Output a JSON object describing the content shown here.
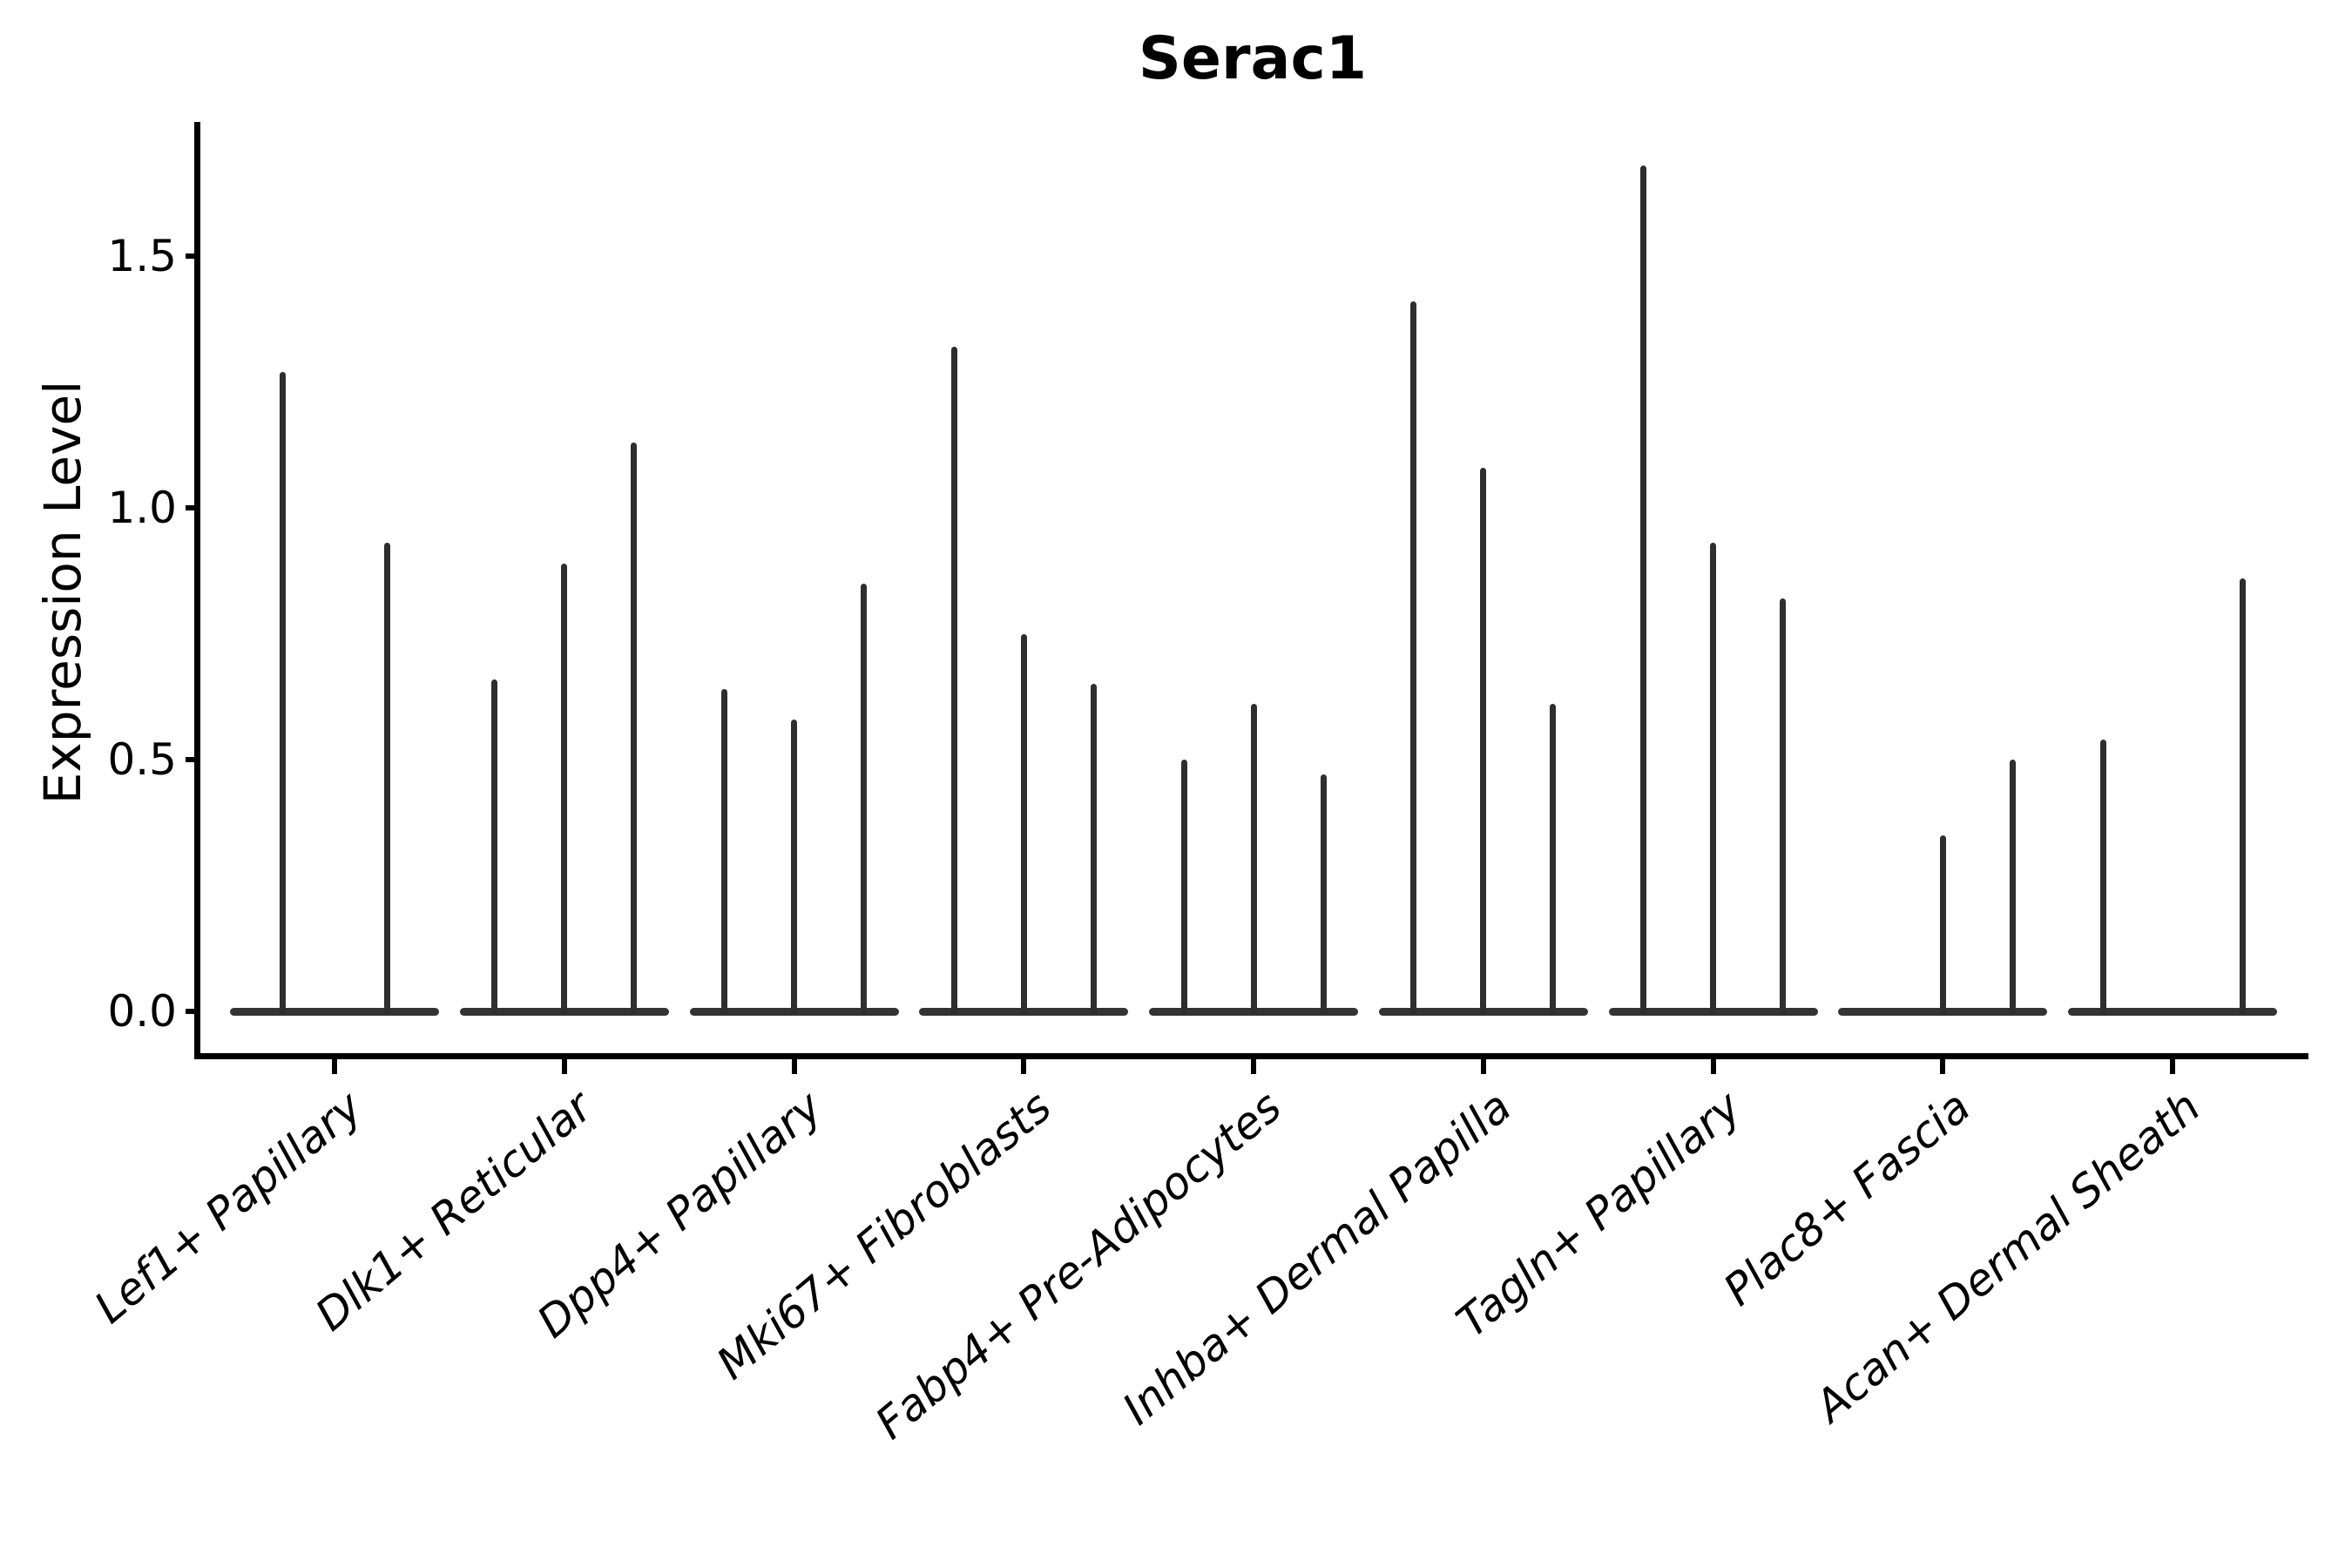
{
  "figure": {
    "title": "Serac1"
  },
  "chart_data": {
    "type": "violin",
    "title": "Serac1",
    "xlabel": "",
    "ylabel": "Expression Level",
    "yticks": [
      0.0,
      0.5,
      1.0,
      1.5
    ],
    "ytick_labels": [
      "0.0",
      "0.5",
      "1.0",
      "1.5"
    ],
    "ylim": [
      -0.08,
      1.77
    ],
    "grid": false,
    "legend": "none",
    "note_shape": "each category shows a flat violin base at 0 with thin spikes; spike entries give max expression per sub-violin, 0 = flat violin with no spike",
    "categories": [
      "Lef1+ Papillary",
      "Dlk1+ Reticular",
      "Dpp4+ Papillary",
      "Mki67+ Fibroblasts",
      "Fabp4+ Pre-Adipocytes",
      "Inhba+ Dermal Papilla",
      "Tagln+ Papillary",
      "Plac8+ Fascia",
      "Acan+ Dermal Sheath"
    ],
    "groups": [
      {
        "label": "Lef1+ Papillary",
        "violin_max_values": [
          1.27,
          0.93
        ]
      },
      {
        "label": "Dlk1+ Reticular",
        "violin_max_values": [
          0.66,
          0.89,
          1.13
        ]
      },
      {
        "label": "Dpp4+ Papillary",
        "violin_max_values": [
          0.64,
          0.58,
          0.85
        ]
      },
      {
        "label": "Mki67+ Fibroblasts",
        "violin_max_values": [
          1.32,
          0.75,
          0.65
        ]
      },
      {
        "label": "Fabp4+ Pre-Adipocytes",
        "violin_max_values": [
          0.5,
          0.61,
          0.47
        ]
      },
      {
        "label": "Inhba+ Dermal Papilla",
        "violin_max_values": [
          1.41,
          1.08,
          0.61
        ]
      },
      {
        "label": "Tagln+ Papillary",
        "violin_max_values": [
          1.68,
          0.93,
          0.82
        ]
      },
      {
        "label": "Plac8+ Fascia",
        "violin_max_values": [
          0,
          0.35,
          0.5
        ]
      },
      {
        "label": "Acan+ Dermal Sheath",
        "violin_max_values": [
          0.54,
          0,
          0.86
        ]
      }
    ],
    "colors": {
      "spike": "#2e2e2e",
      "base": "#333333",
      "axis": "#000000",
      "background": "#ffffff"
    }
  }
}
